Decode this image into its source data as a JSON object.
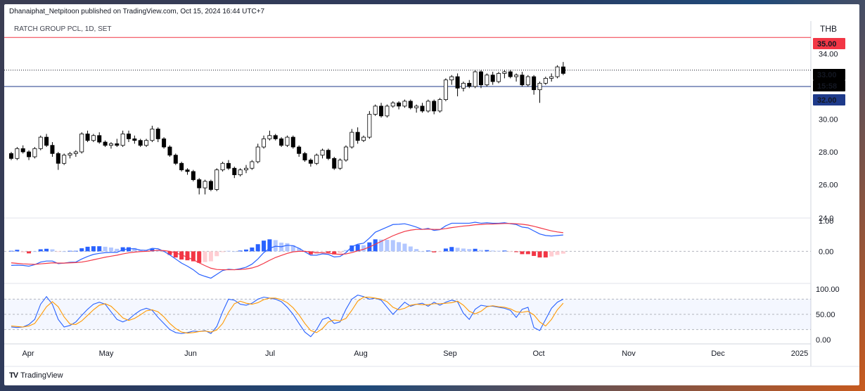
{
  "header": {
    "published_by": "Dhanaiphat_Netpitoon published on TradingView.com, Oct 15, 2024 16:44 UTC+7",
    "symbol": "RATCH GROUP PCL, 1D, SET",
    "currency": "THB"
  },
  "footer": {
    "brand": "TradingView",
    "logo_mark": "TV"
  },
  "colors": {
    "up_candle": "#ffffff",
    "down_candle": "#000000",
    "resistance": "#f23645",
    "support": "#2962ff",
    "last_price": "#131722",
    "macd_line": "#2962ff",
    "signal_line": "#f23645",
    "hist_pos_strong": "#2962ff",
    "hist_pos_weak": "#b2c7ff",
    "hist_neg_strong": "#f23645",
    "hist_neg_weak": "#ffcdd2",
    "stoch_k": "#2962ff",
    "stoch_d": "#ff9800",
    "stoch_band": "#2962ff"
  },
  "chart_data": [
    {
      "type": "candlestick",
      "title": "RATCH GROUP PCL, 1D, SET",
      "x_axis": {
        "months": [
          "Apr",
          "May",
          "Jun",
          "Jul",
          "Aug",
          "Sep",
          "Oct",
          "Nov",
          "Dec",
          "2025"
        ]
      },
      "y_axis": {
        "range": [
          24,
          36
        ],
        "ticks": [
          "26.00",
          "28.00",
          "30.00",
          "32.00",
          "34.00"
        ]
      },
      "bottom_tick": "24.0",
      "price_tags": [
        {
          "label": "35.00",
          "value": 35.0,
          "color": "#f23645",
          "text_color": "#ffffff"
        },
        {
          "label": "33.00",
          "value": 33.0,
          "color": "#000000",
          "text_color": "#ffffff"
        },
        {
          "label": "15:58",
          "value": 32.5,
          "color": "#000000",
          "text_color": "#ffffff"
        },
        {
          "label": "32.00",
          "value": 32.0,
          "color": "#1e3a8a",
          "text_color": "#ffffff"
        }
      ],
      "horizontal_lines": [
        {
          "value": 35.0,
          "color": "#f23645",
          "style": "solid"
        },
        {
          "value": 33.0,
          "color": "#131722",
          "style": "dotted"
        },
        {
          "value": 32.0,
          "color": "#1e3a8a",
          "style": "solid"
        }
      ],
      "channel": {
        "upper": [
          [
            10.75,
            29.0
          ],
          [
            12.5,
            38.3
          ]
        ],
        "lower": [
          [
            10.0,
            24.4
          ],
          [
            12.0,
            33.3
          ]
        ]
      },
      "candles": [
        [
          27.9,
          28.0,
          27.5,
          27.6
        ],
        [
          27.6,
          28.3,
          27.5,
          28.2
        ],
        [
          28.2,
          28.4,
          27.9,
          28.0
        ],
        [
          28.0,
          28.1,
          27.5,
          27.7
        ],
        [
          27.7,
          28.3,
          27.6,
          28.2
        ],
        [
          28.2,
          29.0,
          28.1,
          28.9
        ],
        [
          28.9,
          29.1,
          28.3,
          28.4
        ],
        [
          28.4,
          28.6,
          27.7,
          27.9
        ],
        [
          27.9,
          28.0,
          26.9,
          27.3
        ],
        [
          27.3,
          27.9,
          27.2,
          27.8
        ],
        [
          27.8,
          28.0,
          27.6,
          27.9
        ],
        [
          27.9,
          28.1,
          27.7,
          28.0
        ],
        [
          28.0,
          29.2,
          27.9,
          29.1
        ],
        [
          29.1,
          29.3,
          28.6,
          28.7
        ],
        [
          28.7,
          29.1,
          28.6,
          29.0
        ],
        [
          29.0,
          29.2,
          28.5,
          28.6
        ],
        [
          28.6,
          28.7,
          28.3,
          28.4
        ],
        [
          28.4,
          28.6,
          28.2,
          28.5
        ],
        [
          28.5,
          28.8,
          28.3,
          28.4
        ],
        [
          28.4,
          29.3,
          28.3,
          29.1
        ],
        [
          29.1,
          29.3,
          28.6,
          28.8
        ],
        [
          28.8,
          29.0,
          28.5,
          28.7
        ],
        [
          28.7,
          28.8,
          28.3,
          28.4
        ],
        [
          28.4,
          28.8,
          28.3,
          28.7
        ],
        [
          28.7,
          29.6,
          28.6,
          29.4
        ],
        [
          29.4,
          29.5,
          28.6,
          28.8
        ],
        [
          28.8,
          28.9,
          28.2,
          28.3
        ],
        [
          28.3,
          28.4,
          27.7,
          27.8
        ],
        [
          27.8,
          27.9,
          27.2,
          27.3
        ],
        [
          27.3,
          27.4,
          26.8,
          26.9
        ],
        [
          26.9,
          27.0,
          26.6,
          26.8
        ],
        [
          26.8,
          26.9,
          26.2,
          26.3
        ],
        [
          26.3,
          26.4,
          25.4,
          25.8
        ],
        [
          25.8,
          26.3,
          25.4,
          26.2
        ],
        [
          26.2,
          26.3,
          25.6,
          25.7
        ],
        [
          25.7,
          27.0,
          25.6,
          26.9
        ],
        [
          26.9,
          27.4,
          26.8,
          27.3
        ],
        [
          27.3,
          27.5,
          26.9,
          27.0
        ],
        [
          27.0,
          27.1,
          26.4,
          26.6
        ],
        [
          26.6,
          27.0,
          26.5,
          26.9
        ],
        [
          26.9,
          27.2,
          26.7,
          27.0
        ],
        [
          27.0,
          27.5,
          26.9,
          27.4
        ],
        [
          27.4,
          28.5,
          27.3,
          28.3
        ],
        [
          28.3,
          29.0,
          28.2,
          28.8
        ],
        [
          28.8,
          29.3,
          28.7,
          29.0
        ],
        [
          29.0,
          29.1,
          28.7,
          28.8
        ],
        [
          28.8,
          28.9,
          28.3,
          28.4
        ],
        [
          28.4,
          29.0,
          28.3,
          28.9
        ],
        [
          28.9,
          29.0,
          28.2,
          28.3
        ],
        [
          28.3,
          28.4,
          27.7,
          27.9
        ],
        [
          27.9,
          28.0,
          27.4,
          27.5
        ],
        [
          27.5,
          27.6,
          27.1,
          27.3
        ],
        [
          27.3,
          27.9,
          27.2,
          27.8
        ],
        [
          27.8,
          28.2,
          27.6,
          28.1
        ],
        [
          28.1,
          28.2,
          27.5,
          27.6
        ],
        [
          27.6,
          27.7,
          26.9,
          27.0
        ],
        [
          27.0,
          27.6,
          26.9,
          27.5
        ],
        [
          27.5,
          28.4,
          27.4,
          28.3
        ],
        [
          28.3,
          29.4,
          28.2,
          29.2
        ],
        [
          29.2,
          29.5,
          28.5,
          28.7
        ],
        [
          28.7,
          29.0,
          28.6,
          28.9
        ],
        [
          28.9,
          30.5,
          28.8,
          30.3
        ],
        [
          30.3,
          30.9,
          30.2,
          30.8
        ],
        [
          30.8,
          31.0,
          30.1,
          30.2
        ],
        [
          30.2,
          30.9,
          30.1,
          30.8
        ],
        [
          30.8,
          31.1,
          30.7,
          31.0
        ],
        [
          31.0,
          31.1,
          30.6,
          30.8
        ],
        [
          30.8,
          31.2,
          30.7,
          31.1
        ],
        [
          31.1,
          31.2,
          30.6,
          30.7
        ],
        [
          30.7,
          30.9,
          30.4,
          30.8
        ],
        [
          30.8,
          31.0,
          30.4,
          30.5
        ],
        [
          30.5,
          31.2,
          30.4,
          31.1
        ],
        [
          31.1,
          31.2,
          30.3,
          30.5
        ],
        [
          30.5,
          31.3,
          30.4,
          31.2
        ],
        [
          31.2,
          32.5,
          31.1,
          32.4
        ],
        [
          32.4,
          32.7,
          32.1,
          32.6
        ],
        [
          32.6,
          32.8,
          31.4,
          31.9
        ],
        [
          31.9,
          32.3,
          31.7,
          32.2
        ],
        [
          32.2,
          32.4,
          31.9,
          32.0
        ],
        [
          32.0,
          33.0,
          31.9,
          32.9
        ],
        [
          32.9,
          33.0,
          31.9,
          32.1
        ],
        [
          32.1,
          32.8,
          32.0,
          32.7
        ],
        [
          32.7,
          32.9,
          32.1,
          32.3
        ],
        [
          32.3,
          32.9,
          32.2,
          32.8
        ],
        [
          32.8,
          33.0,
          32.5,
          32.9
        ],
        [
          32.9,
          33.0,
          32.5,
          32.6
        ],
        [
          32.6,
          32.8,
          32.3,
          32.7
        ],
        [
          32.7,
          32.9,
          32.0,
          32.1
        ],
        [
          32.1,
          32.7,
          32.0,
          32.6
        ],
        [
          32.6,
          32.7,
          31.5,
          31.8
        ],
        [
          31.8,
          32.3,
          31.0,
          32.2
        ],
        [
          32.2,
          32.6,
          32.1,
          32.5
        ],
        [
          32.5,
          32.8,
          32.3,
          32.6
        ],
        [
          32.6,
          33.3,
          32.5,
          33.2
        ],
        [
          33.2,
          33.5,
          32.7,
          32.8
        ]
      ]
    },
    {
      "type": "line",
      "title": "MACD",
      "y_axis": {
        "range": [
          -1.2,
          1.25
        ],
        "ticks": [
          "0.00"
        ]
      },
      "top_tick": "1.00",
      "series": [
        {
          "values": [
            -0.55,
            -0.54,
            -0.55,
            -0.58,
            -0.52,
            -0.42,
            -0.38,
            -0.38,
            -0.48,
            -0.46,
            -0.43,
            -0.42,
            -0.3,
            -0.2,
            -0.12,
            -0.08,
            -0.05,
            -0.04,
            -0.04,
            0.06,
            0.1,
            0.1,
            0.05,
            0.04,
            0.12,
            0.1,
            0.0,
            -0.14,
            -0.3,
            -0.46,
            -0.58,
            -0.72,
            -0.9,
            -0.98,
            -1.05,
            -0.9,
            -0.75,
            -0.7,
            -0.72,
            -0.68,
            -0.62,
            -0.5,
            -0.3,
            -0.05,
            0.12,
            0.2,
            0.18,
            0.24,
            0.22,
            0.12,
            -0.02,
            -0.15,
            -0.15,
            -0.1,
            -0.12,
            -0.22,
            -0.2,
            -0.05,
            0.18,
            0.28,
            0.32,
            0.52,
            0.75,
            0.85,
            0.95,
            1.05,
            1.06,
            1.08,
            1.02,
            0.95,
            0.86,
            0.9,
            0.82,
            0.85,
            1.0,
            1.1,
            1.1,
            1.1,
            1.1,
            1.14,
            1.1,
            1.12,
            1.1,
            1.1,
            1.12,
            1.08,
            1.05,
            0.95,
            0.92,
            0.8,
            0.68,
            0.62,
            0.6,
            0.62,
            0.64
          ]
        },
        {
          "values": [
            -0.45,
            -0.47,
            -0.49,
            -0.5,
            -0.51,
            -0.49,
            -0.47,
            -0.45,
            -0.46,
            -0.46,
            -0.45,
            -0.44,
            -0.42,
            -0.38,
            -0.33,
            -0.28,
            -0.23,
            -0.19,
            -0.15,
            -0.1,
            -0.06,
            -0.03,
            -0.01,
            0.0,
            0.02,
            0.04,
            0.03,
            0.0,
            -0.06,
            -0.14,
            -0.23,
            -0.33,
            -0.45,
            -0.56,
            -0.66,
            -0.71,
            -0.72,
            -0.72,
            -0.72,
            -0.71,
            -0.69,
            -0.65,
            -0.58,
            -0.47,
            -0.35,
            -0.24,
            -0.16,
            -0.08,
            -0.02,
            0.0,
            0.0,
            -0.03,
            -0.05,
            -0.06,
            -0.07,
            -0.1,
            -0.12,
            -0.1,
            -0.05,
            0.02,
            0.08,
            0.17,
            0.28,
            0.39,
            0.5,
            0.61,
            0.7,
            0.78,
            0.83,
            0.86,
            0.86,
            0.87,
            0.86,
            0.86,
            0.89,
            0.93,
            0.96,
            0.99,
            1.01,
            1.04,
            1.05,
            1.07,
            1.07,
            1.08,
            1.09,
            1.09,
            1.08,
            1.06,
            1.03,
            0.98,
            0.92,
            0.86,
            0.8,
            0.76,
            0.73
          ]
        }
      ],
      "histogram": [
        0.02,
        0.06,
        -0.04,
        -0.08,
        0.0,
        0.08,
        0.1,
        0.08,
        -0.02,
        0.0,
        0.02,
        0.02,
        0.12,
        0.18,
        0.2,
        0.2,
        0.18,
        0.15,
        0.1,
        0.16,
        0.16,
        0.13,
        0.06,
        0.04,
        0.1,
        0.06,
        -0.03,
        -0.14,
        -0.24,
        -0.32,
        -0.35,
        -0.39,
        -0.45,
        -0.42,
        -0.39,
        -0.19,
        -0.03,
        0.02,
        0.0,
        0.03,
        0.07,
        0.15,
        0.28,
        0.42,
        0.47,
        0.44,
        0.34,
        0.32,
        0.24,
        0.12,
        -0.02,
        -0.12,
        -0.1,
        -0.04,
        -0.05,
        -0.12,
        -0.08,
        0.05,
        0.23,
        0.26,
        0.24,
        0.35,
        0.47,
        0.46,
        0.45,
        0.44,
        0.36,
        0.3,
        0.19,
        0.09,
        0.0,
        0.03,
        -0.04,
        -0.01,
        0.11,
        0.17,
        0.14,
        0.11,
        0.09,
        0.1,
        0.05,
        0.05,
        0.03,
        0.02,
        0.03,
        -0.01,
        -0.03,
        -0.11,
        -0.11,
        -0.18,
        -0.24,
        -0.24,
        -0.2,
        -0.14,
        -0.09
      ]
    },
    {
      "type": "line",
      "title": "Stochastic",
      "y_axis": {
        "range": [
          0,
          100
        ],
        "ticks": [
          "100.00",
          "50.00",
          "0.00"
        ]
      },
      "band": [
        20,
        80
      ],
      "series": [
        {
          "values": [
            25,
            24,
            25,
            30,
            40,
            70,
            85,
            70,
            40,
            25,
            28,
            35,
            48,
            60,
            70,
            74,
            70,
            55,
            40,
            35,
            40,
            50,
            58,
            62,
            58,
            44,
            32,
            20,
            14,
            12,
            14,
            17,
            16,
            18,
            12,
            26,
            55,
            80,
            78,
            70,
            68,
            72,
            80,
            84,
            82,
            80,
            75,
            64,
            50,
            32,
            15,
            6,
            20,
            40,
            44,
            32,
            35,
            60,
            80,
            88,
            85,
            80,
            82,
            78,
            64,
            50,
            62,
            74,
            66,
            70,
            72,
            66,
            74,
            68,
            74,
            78,
            75,
            52,
            40,
            60,
            68,
            66,
            66,
            64,
            62,
            58,
            44,
            60,
            64,
            24,
            18,
            40,
            62,
            74,
            80
          ]
        },
        {
          "values": [
            27,
            26,
            25,
            27,
            32,
            48,
            65,
            75,
            65,
            45,
            31,
            30,
            37,
            48,
            59,
            68,
            71,
            66,
            55,
            43,
            38,
            42,
            49,
            57,
            59,
            55,
            45,
            32,
            22,
            15,
            13,
            14,
            16,
            17,
            15,
            19,
            32,
            54,
            71,
            76,
            72,
            70,
            73,
            79,
            82,
            82,
            79,
            73,
            63,
            49,
            32,
            18,
            14,
            22,
            35,
            39,
            37,
            42,
            58,
            76,
            84,
            84,
            82,
            80,
            75,
            64,
            59,
            62,
            68,
            70,
            69,
            69,
            71,
            71,
            72,
            73,
            76,
            68,
            56,
            51,
            56,
            65,
            67,
            65,
            64,
            61,
            55,
            54,
            56,
            49,
            35,
            27,
            40,
            59,
            72
          ]
        }
      ]
    }
  ]
}
